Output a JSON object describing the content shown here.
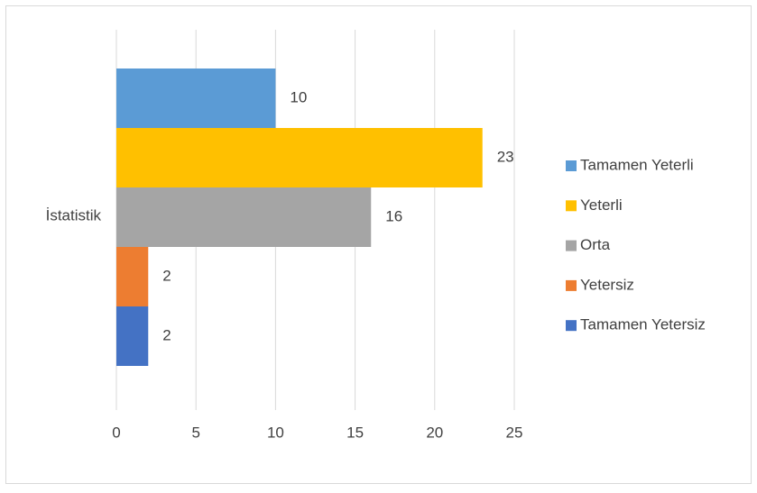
{
  "chart_data": {
    "type": "bar",
    "orientation": "horizontal",
    "categories": [
      "İstatistik"
    ],
    "series": [
      {
        "name": "Tamamen Yeterli",
        "color": "#5B9BD5",
        "values": [
          10
        ]
      },
      {
        "name": "Yeterli",
        "color": "#FFC000",
        "values": [
          23
        ]
      },
      {
        "name": "Orta",
        "color": "#A5A5A5",
        "values": [
          16
        ]
      },
      {
        "name": "Yetersiz",
        "color": "#ED7D31",
        "values": [
          2
        ]
      },
      {
        "name": "Tamamen Yetersiz",
        "color": "#4472C4",
        "values": [
          2
        ]
      }
    ],
    "xlim": [
      0,
      25
    ],
    "xticks": [
      0,
      5,
      10,
      15,
      20,
      25
    ],
    "grid": true,
    "legend": "right"
  }
}
